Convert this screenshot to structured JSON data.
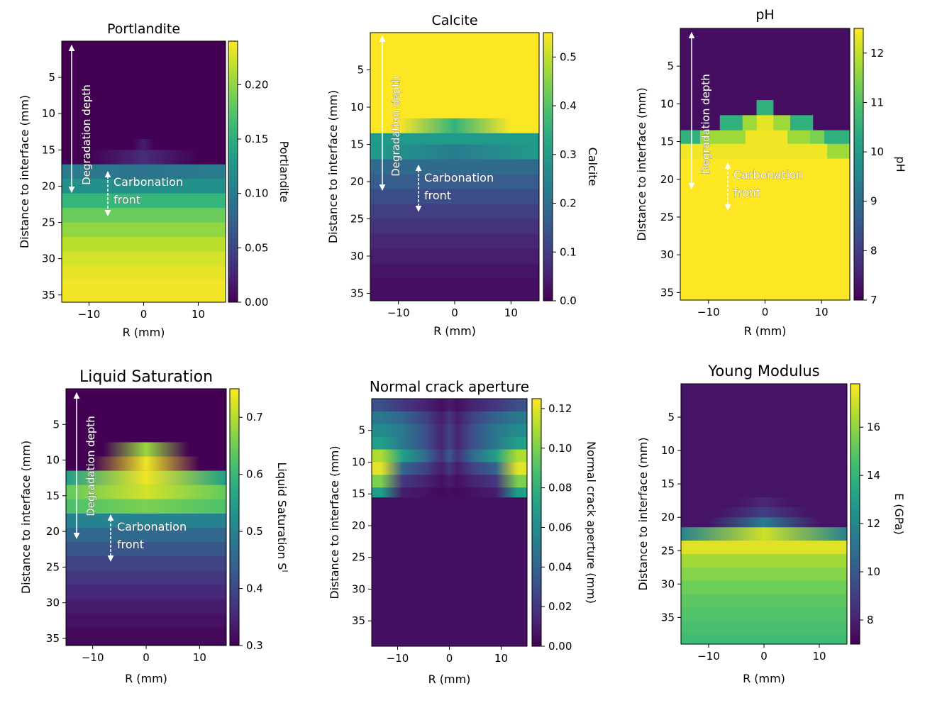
{
  "chart_data": [
    {
      "type": "heatmap",
      "title": "Portlandite",
      "xlabel": "R (mm)",
      "ylabel": "Distance to interface (mm)",
      "xlim": [
        -15,
        15
      ],
      "ylim": [
        36,
        0
      ],
      "xticks": [
        "−10",
        "0",
        "10"
      ],
      "yticks": [
        "5",
        "10",
        "15",
        "20",
        "25",
        "30",
        "35"
      ],
      "colorbar": {
        "label": "Portlandite",
        "min": 0,
        "max": 0.24,
        "ticks": [
          "0.00",
          "0.05",
          "0.10",
          "0.15",
          "0.20"
        ]
      },
      "annotations": {
        "degradation": "Degradation depth",
        "carbonation_1": "Carbonation",
        "carbonation_2": "front"
      },
      "rows": [
        {
          "y0": 0,
          "y1": 13.5,
          "edge": 0,
          "center": 0,
          "width": 0
        },
        {
          "y0": 13.5,
          "y1": 15,
          "edge": 0,
          "center": 0.02,
          "width": 2
        },
        {
          "y0": 15,
          "y1": 17,
          "edge": 0,
          "center": 0.03,
          "width": 10
        },
        {
          "y0": 17,
          "y1": 19,
          "edge": 0.1,
          "center": 0.09
        },
        {
          "y0": 19,
          "y1": 21,
          "edge": 0.12,
          "center": 0.12
        },
        {
          "y0": 21,
          "y1": 23,
          "edge": 0.16,
          "center": 0.16
        },
        {
          "y0": 23,
          "y1": 25,
          "edge": 0.185,
          "center": 0.185
        },
        {
          "y0": 25,
          "y1": 27,
          "edge": 0.2,
          "center": 0.2
        },
        {
          "y0": 27,
          "y1": 29,
          "edge": 0.215,
          "center": 0.215
        },
        {
          "y0": 29,
          "y1": 31,
          "edge": 0.225,
          "center": 0.225
        },
        {
          "y0": 31,
          "y1": 33,
          "edge": 0.232,
          "center": 0.232
        },
        {
          "y0": 33,
          "y1": 36,
          "edge": 0.236,
          "center": 0.236
        }
      ]
    },
    {
      "type": "heatmap",
      "title": "Calcite",
      "xlabel": "R (mm)",
      "ylabel": "Distance to interface (mm)",
      "xlim": [
        -15,
        15
      ],
      "ylim": [
        36,
        0
      ],
      "xticks": [
        "−10",
        "0",
        "10"
      ],
      "yticks": [
        "5",
        "10",
        "15",
        "20",
        "25",
        "30",
        "35"
      ],
      "colorbar": {
        "label": "Calcite",
        "min": 0,
        "max": 0.55,
        "ticks": [
          "0.0",
          "0.1",
          "0.2",
          "0.3",
          "0.4",
          "0.5"
        ]
      },
      "annotations": {
        "degradation": "Degradation depth",
        "carbonation_1": "Carbonation",
        "carbonation_2": "front"
      },
      "rows": [
        {
          "y0": 0,
          "y1": 11.5,
          "edge": 0.55,
          "center": 0.55
        },
        {
          "y0": 11.5,
          "y1": 13.5,
          "edge": 0.55,
          "center": 0.36,
          "width": 10
        },
        {
          "y0": 13.5,
          "y1": 15,
          "edge": 0.3,
          "center": 0.3
        },
        {
          "y0": 15,
          "y1": 17,
          "edge": 0.3,
          "center": 0.23
        },
        {
          "y0": 17,
          "y1": 19,
          "edge": 0.19,
          "center": 0.19
        },
        {
          "y0": 19,
          "y1": 21,
          "edge": 0.16,
          "center": 0.16
        },
        {
          "y0": 21,
          "y1": 23,
          "edge": 0.13,
          "center": 0.13
        },
        {
          "y0": 23,
          "y1": 25,
          "edge": 0.1,
          "center": 0.1
        },
        {
          "y0": 25,
          "y1": 27,
          "edge": 0.08,
          "center": 0.08
        },
        {
          "y0": 27,
          "y1": 29,
          "edge": 0.06,
          "center": 0.06
        },
        {
          "y0": 29,
          "y1": 31,
          "edge": 0.045,
          "center": 0.045
        },
        {
          "y0": 31,
          "y1": 33,
          "edge": 0.03,
          "center": 0.03
        },
        {
          "y0": 33,
          "y1": 36,
          "edge": 0.02,
          "center": 0.02
        }
      ]
    },
    {
      "type": "heatmap",
      "title": "pH",
      "xlabel": "R (mm)",
      "ylabel": "Distance to interface (mm)",
      "xlim": [
        -15,
        15
      ],
      "ylim": [
        36,
        0
      ],
      "xticks": [
        "−10",
        "0",
        "10"
      ],
      "yticks": [
        "5",
        "10",
        "15",
        "20",
        "25",
        "30",
        "35"
      ],
      "colorbar": {
        "label": "pH",
        "min": 7,
        "max": 12.5,
        "ticks": [
          "7",
          "8",
          "9",
          "10",
          "11",
          "12"
        ]
      },
      "annotations": {
        "degradation": "Degradation depth",
        "carbonation_1": "Carbonation",
        "carbonation_2": "front"
      },
      "cells": [
        {
          "x0": -1.5,
          "x1": 1.5,
          "y0": 9.5,
          "y1": 11.5,
          "v": 10.5
        },
        {
          "x0": -8,
          "x1": -4,
          "y0": 11.5,
          "y1": 13.5,
          "v": 10.5
        },
        {
          "x0": -4,
          "x1": -1.5,
          "y0": 11.5,
          "y1": 13.5,
          "v": 11.7
        },
        {
          "x0": -1.5,
          "x1": 1.5,
          "y0": 11.5,
          "y1": 13.5,
          "v": 12.3
        },
        {
          "x0": 1.5,
          "x1": 4.5,
          "y0": 11.5,
          "y1": 13.5,
          "v": 11.7
        },
        {
          "x0": 4.5,
          "x1": 8.5,
          "y0": 11.5,
          "y1": 13.5,
          "v": 10.5
        },
        {
          "x0": -15,
          "x1": -11.5,
          "y0": 13.5,
          "y1": 15.3,
          "v": 10.5
        },
        {
          "x0": -11.5,
          "x1": -3.5,
          "y0": 13.5,
          "y1": 15.3,
          "v": 11.7
        },
        {
          "x0": -3.5,
          "x1": 4,
          "y0": 13.5,
          "y1": 15.3,
          "v": 12.4
        },
        {
          "x0": 4,
          "x1": 8,
          "y0": 13.5,
          "y1": 15.3,
          "v": 11.7
        },
        {
          "x0": 8,
          "x1": 10.5,
          "y0": 13.5,
          "y1": 15.3,
          "v": 11.4
        },
        {
          "x0": 10.5,
          "x1": 15,
          "y0": 13.5,
          "y1": 15.3,
          "v": 10.5
        },
        {
          "x0": -15,
          "x1": 11,
          "y0": 15.3,
          "y1": 17.2,
          "v": 12.4
        },
        {
          "x0": 11,
          "x1": 15,
          "y0": 15.3,
          "y1": 17.2,
          "v": 11.7
        }
      ],
      "rows": [
        {
          "y0": 0,
          "y1": 13.5,
          "edge": 7.2,
          "center": 7.2
        },
        {
          "y0": 13.5,
          "y1": 15.3,
          "edge": 10.5,
          "center": 10.5
        },
        {
          "y0": 15.3,
          "y1": 17.2,
          "edge": 12.4,
          "center": 12.4
        },
        {
          "y0": 17.2,
          "y1": 36,
          "edge": 12.5,
          "center": 12.5
        }
      ]
    },
    {
      "type": "heatmap",
      "title": "Liquid Saturation",
      "xlabel": "R (mm)",
      "ylabel": "Distance to interface (mm)",
      "xlim": [
        -15,
        15
      ],
      "ylim": [
        36,
        0
      ],
      "xticks": [
        "−10",
        "0",
        "10"
      ],
      "yticks": [
        "5",
        "10",
        "15",
        "20",
        "25",
        "30",
        "35"
      ],
      "colorbar": {
        "label": "Liquid Saturation S",
        "label_sup": "l",
        "min": 0.3,
        "max": 0.75,
        "ticks": [
          "0.3",
          "0.4",
          "0.5",
          "0.6",
          "0.7"
        ]
      },
      "annotations": {
        "degradation": "Degradation depth",
        "carbonation_1": "Carbonation",
        "carbonation_2": "front"
      },
      "rows": [
        {
          "y0": 0,
          "y1": 7.5,
          "edge": 0.3,
          "center": 0.3
        },
        {
          "y0": 7.5,
          "y1": 9.5,
          "edge": 0.3,
          "center": 0.68,
          "width": 8
        },
        {
          "y0": 9.5,
          "y1": 11.5,
          "edge": 0.3,
          "center": 0.74,
          "width": 10
        },
        {
          "y0": 11.5,
          "y1": 13.5,
          "edge": 0.55,
          "center": 0.74
        },
        {
          "y0": 13.5,
          "y1": 15.5,
          "edge": 0.64,
          "center": 0.72
        },
        {
          "y0": 15.5,
          "y1": 17.5,
          "edge": 0.62,
          "center": 0.66
        },
        {
          "y0": 17.5,
          "y1": 19.5,
          "edge": 0.5,
          "center": 0.5
        },
        {
          "y0": 19.5,
          "y1": 21.5,
          "edge": 0.45,
          "center": 0.45
        },
        {
          "y0": 21.5,
          "y1": 23.5,
          "edge": 0.42,
          "center": 0.42
        },
        {
          "y0": 23.5,
          "y1": 25.5,
          "edge": 0.39,
          "center": 0.39
        },
        {
          "y0": 25.5,
          "y1": 27.5,
          "edge": 0.37,
          "center": 0.37
        },
        {
          "y0": 27.5,
          "y1": 29.5,
          "edge": 0.35,
          "center": 0.35
        },
        {
          "y0": 29.5,
          "y1": 31.5,
          "edge": 0.335,
          "center": 0.335
        },
        {
          "y0": 31.5,
          "y1": 33.5,
          "edge": 0.32,
          "center": 0.32
        },
        {
          "y0": 33.5,
          "y1": 36,
          "edge": 0.31,
          "center": 0.31
        }
      ]
    },
    {
      "type": "heatmap",
      "title": "Normal crack aperture",
      "xlabel": "R (mm)",
      "ylabel": "Distance to interface (mm)",
      "xlim": [
        -15,
        15
      ],
      "ylim": [
        39,
        0
      ],
      "xticks": [
        "−10",
        "0",
        "10"
      ],
      "yticks": [
        "5",
        "10",
        "15",
        "20",
        "25",
        "30",
        "35"
      ],
      "colorbar": {
        "label": "Normal crack aperture (mm)",
        "min": 0,
        "max": 0.125,
        "ticks": [
          "0.00",
          "0.02",
          "0.04",
          "0.06",
          "0.08",
          "0.10",
          "0.12"
        ]
      },
      "crack_rows": [
        {
          "y0": 0,
          "y1": 2,
          "edge": 0.03,
          "inner": 0.02
        },
        {
          "y0": 2,
          "y1": 4,
          "edge": 0.05,
          "inner": 0.04
        },
        {
          "y0": 4,
          "y1": 6,
          "edge": 0.06,
          "inner": 0.05
        },
        {
          "y0": 6,
          "y1": 8,
          "edge": 0.07,
          "inner": 0.05
        },
        {
          "y0": 8,
          "y1": 10,
          "edge": 0.11,
          "inner": 0.07
        },
        {
          "y0": 10,
          "y1": 12,
          "edge": 0.12,
          "inner": 0.04
        },
        {
          "y0": 12,
          "y1": 14,
          "edge": 0.1,
          "inner": 0.02
        },
        {
          "y0": 14,
          "y1": 15.5,
          "edge": 0.07,
          "inner": 0.01
        }
      ]
    },
    {
      "type": "heatmap",
      "title": "Young Modulus",
      "xlabel": "R (mm)",
      "ylabel": "Distance to interface (mm)",
      "xlim": [
        -15,
        15
      ],
      "ylim": [
        39,
        0
      ],
      "xticks": [
        "−10",
        "0",
        "10"
      ],
      "yticks": [
        "5",
        "10",
        "15",
        "20",
        "25",
        "30",
        "35"
      ],
      "colorbar": {
        "label": "E (GPa)",
        "min": 7,
        "max": 17.8,
        "ticks": [
          "8",
          "10",
          "12",
          "14",
          "16"
        ]
      },
      "rows": [
        {
          "y0": 0,
          "y1": 17,
          "edge": 7.6,
          "center": 7.6
        },
        {
          "y0": 17,
          "y1": 18.5,
          "edge": 7.6,
          "center": 8.2,
          "width": 5
        },
        {
          "y0": 18.5,
          "y1": 20,
          "edge": 7.6,
          "center": 9,
          "width": 8
        },
        {
          "y0": 20,
          "y1": 21.5,
          "edge": 7.6,
          "center": 11.5,
          "width": 10
        },
        {
          "y0": 21.5,
          "y1": 23.5,
          "edge": 11.8,
          "center": 17
        },
        {
          "y0": 23.5,
          "y1": 25.5,
          "edge": 17.3,
          "center": 17.3
        },
        {
          "y0": 25.5,
          "y1": 27.5,
          "edge": 16.3,
          "center": 16.3
        },
        {
          "y0": 27.5,
          "y1": 29.5,
          "edge": 15.8,
          "center": 15.8
        },
        {
          "y0": 29.5,
          "y1": 31.5,
          "edge": 15.4,
          "center": 15.4
        },
        {
          "y0": 31.5,
          "y1": 33.5,
          "edge": 15.1,
          "center": 15.1
        },
        {
          "y0": 33.5,
          "y1": 35.5,
          "edge": 14.8,
          "center": 14.8
        },
        {
          "y0": 35.5,
          "y1": 37.5,
          "edge": 14.6,
          "center": 14.6
        },
        {
          "y0": 37.5,
          "y1": 39,
          "edge": 14.4,
          "center": 14.4
        }
      ]
    }
  ]
}
